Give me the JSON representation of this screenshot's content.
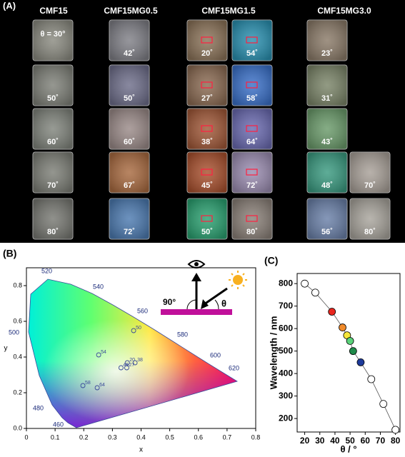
{
  "panel_a": {
    "label": "(A)",
    "groups": [
      {
        "title": "CMF15",
        "roi_markers": false,
        "columns": [
          [
            {
              "label": "θ = 30°",
              "color": "#8a8a80"
            },
            {
              "label": "50˚",
              "color": "#7e8078"
            },
            {
              "label": "60˚",
              "color": "#80847c"
            },
            {
              "label": "70˚",
              "color": "#7c7e76"
            },
            {
              "label": "80˚",
              "color": "#777872"
            }
          ]
        ]
      },
      {
        "title": "CMF15MG0.5",
        "roi_markers": false,
        "columns": [
          [
            {
              "label": "42˚",
              "color": "#7f7f86"
            },
            {
              "label": "50˚",
              "color": "#6e6e8a"
            },
            {
              "label": "60˚",
              "color": "#9a8a88"
            },
            {
              "label": "67˚",
              "color": "#a86a40"
            },
            {
              "label": "72˚",
              "color": "#4c7ab0"
            }
          ]
        ]
      },
      {
        "title": "CMF15MG1.5",
        "roi_markers": true,
        "columns": [
          [
            {
              "label": "20˚",
              "color": "#8a7258"
            },
            {
              "label": "27˚",
              "color": "#8a6a52"
            },
            {
              "label": "38˚",
              "color": "#a05838"
            },
            {
              "label": "45˚",
              "color": "#a8502e"
            },
            {
              "label": "50˚",
              "color": "#2aa070"
            }
          ],
          [
            {
              "label": "54˚",
              "color": "#2a90b0"
            },
            {
              "label": "58˚",
              "color": "#3a70c8"
            },
            {
              "label": "64˚",
              "color": "#6a6ab0"
            },
            {
              "label": "72˚",
              "color": "#9a8cb0"
            },
            {
              "label": "80˚",
              "color": "#8a8078"
            }
          ]
        ]
      },
      {
        "title": "CMF15MG3.0",
        "roi_markers": false,
        "columns": [
          [
            {
              "label": "23˚",
              "color": "#8a7a68"
            },
            {
              "label": "31˚",
              "color": "#7a8468"
            },
            {
              "label": "43˚",
              "color": "#6a9a6a"
            },
            {
              "label": "48˚",
              "color": "#3a9a80"
            },
            {
              "label": "56˚",
              "color": "#6a80a8"
            }
          ],
          [
            {
              "label": "70˚",
              "color": "#a8a098"
            },
            {
              "label": "80˚",
              "color": "#a8a49c"
            }
          ]
        ]
      }
    ]
  },
  "chart_data": [
    {
      "type": "scatter",
      "panel_label": "(B)",
      "xlabel": "x",
      "ylabel": "y",
      "xlim": [
        0,
        0.8
      ],
      "ylim": [
        0,
        0.9
      ],
      "xticks": [
        0,
        0.1,
        0.2,
        0.3,
        0.4,
        0.5,
        0.6,
        0.7,
        0.8
      ],
      "yticks": [
        {
          "value": 0,
          "label": "0.0"
        },
        0.2,
        0.4,
        0.6,
        0.8
      ],
      "x": [
        0.374,
        0.252,
        0.352,
        0.379,
        0.33,
        0.35,
        0.197,
        0.247
      ],
      "y": [
        0.548,
        0.412,
        0.368,
        0.368,
        0.34,
        0.34,
        0.24,
        0.228
      ],
      "point_labels": [
        "50",
        "54",
        "20",
        "38",
        "45",
        "27",
        "58",
        "64"
      ],
      "color": "#3a4a9a",
      "locus_labels": [
        "520",
        "540",
        "560",
        "580",
        "600",
        "620",
        "500",
        "480",
        "460"
      ],
      "inset": {
        "normal_angle": "90°",
        "angle": "θ"
      }
    },
    {
      "type": "line",
      "panel_label": "(C)",
      "xlabel": "θ / °",
      "ylabel": "Wavelength / nm",
      "xlim": [
        15,
        83
      ],
      "ylim": [
        140,
        845
      ],
      "xticks": [
        20,
        30,
        40,
        50,
        60,
        70,
        80
      ],
      "yticks": [
        200,
        300,
        400,
        500,
        600,
        700,
        800
      ],
      "x": [
        20,
        27,
        38,
        45,
        48,
        50,
        52,
        57,
        64,
        72,
        80
      ],
      "values": [
        800,
        760,
        675,
        605,
        570,
        545,
        500,
        450,
        375,
        265,
        150
      ],
      "colors": [
        "#ffffff",
        "#ffffff",
        "#e8261e",
        "#f08a2a",
        "#f5e63a",
        "#5ad27a",
        "#1f8a4a",
        "#1d3a9a",
        "#ffffff",
        "#ffffff",
        "#ffffff"
      ]
    }
  ]
}
